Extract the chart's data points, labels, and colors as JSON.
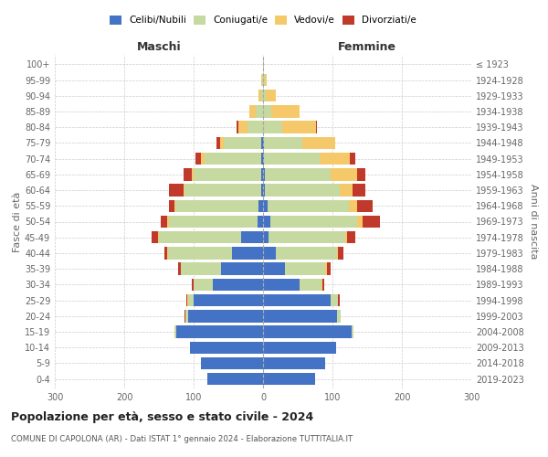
{
  "age_groups": [
    "0-4",
    "5-9",
    "10-14",
    "15-19",
    "20-24",
    "25-29",
    "30-34",
    "35-39",
    "40-44",
    "45-49",
    "50-54",
    "55-59",
    "60-64",
    "65-69",
    "70-74",
    "75-79",
    "80-84",
    "85-89",
    "90-94",
    "95-99",
    "100+"
  ],
  "birth_years": [
    "2019-2023",
    "2014-2018",
    "2009-2013",
    "2004-2008",
    "1999-2003",
    "1994-1998",
    "1989-1993",
    "1984-1988",
    "1979-1983",
    "1974-1978",
    "1969-1973",
    "1964-1968",
    "1959-1963",
    "1954-1958",
    "1949-1953",
    "1944-1948",
    "1939-1943",
    "1934-1938",
    "1929-1933",
    "1924-1928",
    "≤ 1923"
  ],
  "male": {
    "celibi": [
      80,
      90,
      105,
      125,
      108,
      100,
      72,
      60,
      45,
      32,
      8,
      6,
      3,
      2,
      2,
      2,
      0,
      0,
      0,
      0,
      0
    ],
    "coniugati": [
      0,
      0,
      0,
      2,
      4,
      8,
      28,
      58,
      92,
      118,
      128,
      120,
      110,
      98,
      82,
      55,
      22,
      10,
      3,
      1,
      0
    ],
    "vedovi": [
      0,
      0,
      0,
      0,
      0,
      1,
      0,
      0,
      1,
      1,
      2,
      2,
      2,
      3,
      5,
      5,
      14,
      10,
      3,
      1,
      0
    ],
    "divorziati": [
      0,
      0,
      0,
      0,
      1,
      2,
      2,
      5,
      4,
      10,
      10,
      8,
      20,
      12,
      8,
      5,
      2,
      0,
      0,
      0,
      0
    ]
  },
  "female": {
    "nubili": [
      75,
      90,
      105,
      128,
      107,
      98,
      52,
      32,
      18,
      8,
      10,
      6,
      3,
      2,
      1,
      1,
      0,
      0,
      0,
      0,
      0
    ],
    "coniugate": [
      0,
      0,
      0,
      2,
      5,
      10,
      32,
      58,
      88,
      110,
      125,
      118,
      108,
      95,
      80,
      55,
      28,
      12,
      4,
      2,
      0
    ],
    "vedove": [
      0,
      0,
      0,
      0,
      0,
      0,
      2,
      2,
      2,
      3,
      8,
      12,
      18,
      38,
      44,
      48,
      48,
      40,
      15,
      3,
      1
    ],
    "divorziate": [
      0,
      0,
      0,
      0,
      0,
      2,
      2,
      5,
      8,
      12,
      25,
      22,
      18,
      12,
      8,
      0,
      2,
      0,
      0,
      0,
      0
    ]
  },
  "colors": {
    "celibi": "#4472c4",
    "coniugati": "#c5d9a0",
    "vedovi": "#f5c96a",
    "divorziati": "#c0392b"
  },
  "xlim": 300,
  "title": "Popolazione per età, sesso e stato civile - 2024",
  "subtitle": "COMUNE DI CAPOLONA (AR) - Dati ISTAT 1° gennaio 2024 - Elaborazione TUTTITALIA.IT",
  "xlabel_left": "Maschi",
  "xlabel_right": "Femmine",
  "ylabel_left": "Fasce di età",
  "ylabel_right": "Anni di nascita",
  "bg_color": "#ffffff",
  "grid_color": "#cccccc"
}
